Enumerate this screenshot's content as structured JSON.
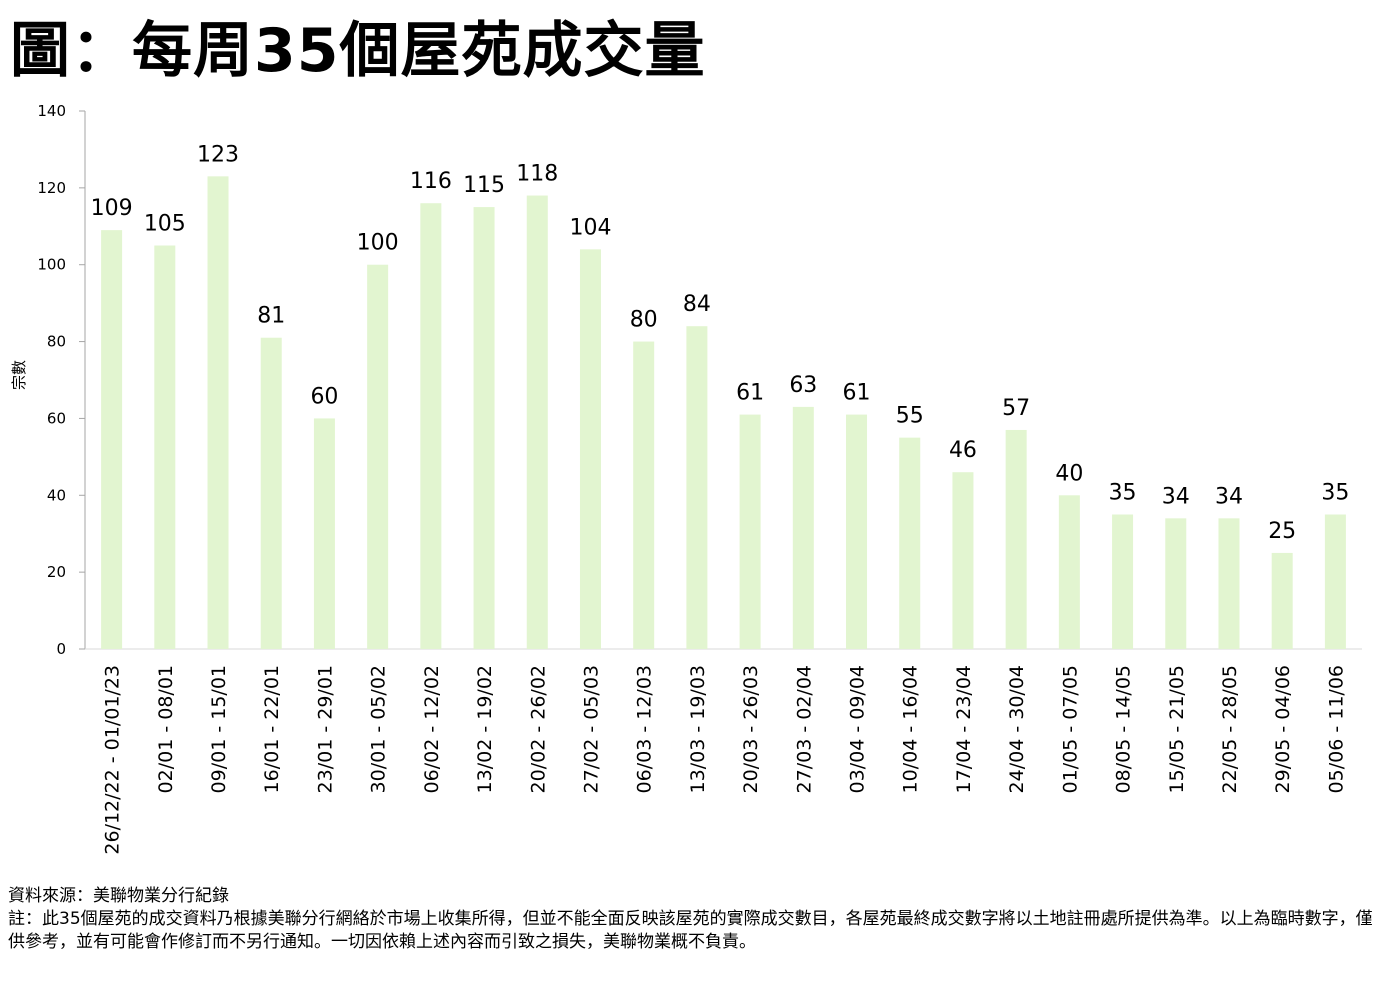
{
  "title": "圖：每周35個屋苑成交量",
  "chart_data": {
    "type": "bar",
    "title": "圖：每周35個屋苑成交量",
    "xlabel": "",
    "ylabel": "宗數",
    "ylim": [
      0,
      140
    ],
    "yticks": [
      0,
      20,
      40,
      60,
      80,
      100,
      120,
      140
    ],
    "grid": false,
    "bar_color": "#e2f5d0",
    "categories": [
      "26/12/22 - 01/01/23",
      "02/01 - 08/01",
      "09/01 - 15/01",
      "16/01 - 22/01",
      "23/01 - 29/01",
      "30/01 - 05/02",
      "06/02 - 12/02",
      "13/02 - 19/02",
      "20/02 - 26/02",
      "27/02 - 05/03",
      "06/03 - 12/03",
      "13/03 - 19/03",
      "20/03 - 26/03",
      "27/03 - 02/04",
      "03/04 - 09/04",
      "10/04 - 16/04",
      "17/04 - 23/04",
      "24/04 - 30/04",
      "01/05 - 07/05",
      "08/05 - 14/05",
      "15/05 - 21/05",
      "22/05 - 28/05",
      "29/05 - 04/06",
      "05/06 - 11/06"
    ],
    "values": [
      109,
      105,
      123,
      81,
      60,
      100,
      116,
      115,
      118,
      104,
      80,
      84,
      61,
      63,
      61,
      55,
      46,
      57,
      40,
      35,
      34,
      34,
      25,
      35
    ]
  },
  "footer": {
    "source": "資料來源：美聯物業分行紀錄",
    "note": "註：此35個屋苑的成交資料乃根據美聯分行網絡於市場上收集所得，但並不能全面反映該屋苑的實際成交數目，各屋苑最終成交數字將以土地註冊處所提供為準。以上為臨時數字，僅供參考，並有可能會作修訂而不另行通知。一切因依賴上述內容而引致之損失，美聯物業概不負責。"
  }
}
